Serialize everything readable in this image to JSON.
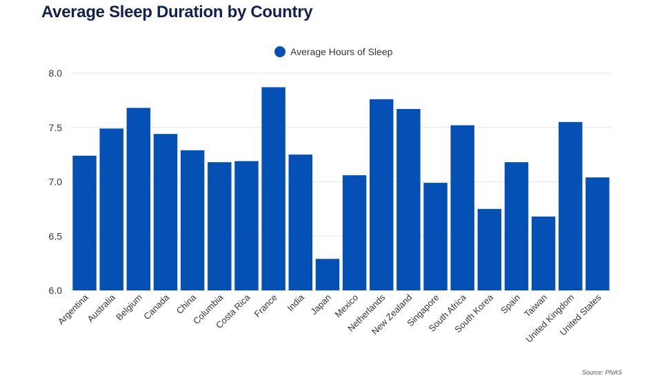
{
  "chart_data": {
    "type": "bar",
    "title": "Average Sleep Duration by Country",
    "legend": {
      "label": "Average Hours of Sleep",
      "placement": "top-center"
    },
    "categories": [
      "Argentina",
      "Australia",
      "Belgium",
      "Canada",
      "China",
      "Columbia",
      "Costa Rica",
      "France",
      "India",
      "Japan",
      "Mexico",
      "Netherlands",
      "New Zealand",
      "Singapore",
      "South Africa",
      "South Korea",
      "Spain",
      "Taiwan",
      "United Kingdom",
      "United States"
    ],
    "series": [
      {
        "name": "Average Hours of Sleep",
        "values": [
          7.24,
          7.49,
          7.68,
          7.44,
          7.29,
          7.18,
          7.19,
          7.87,
          7.25,
          6.29,
          7.06,
          7.76,
          7.67,
          6.99,
          7.52,
          6.75,
          7.18,
          6.68,
          7.55,
          7.04
        ]
      }
    ],
    "ylim": [
      6.0,
      8.0
    ],
    "yticks": [
      "6.0",
      "6.5",
      "7.0",
      "7.5",
      "8.0"
    ],
    "grid": true,
    "xlabel": "",
    "ylabel": "",
    "source": "Source: PNAS",
    "colors": {
      "bar": "#0550b4",
      "grid": "#e5e5e5",
      "title": "#12224e",
      "text": "#333333"
    }
  }
}
